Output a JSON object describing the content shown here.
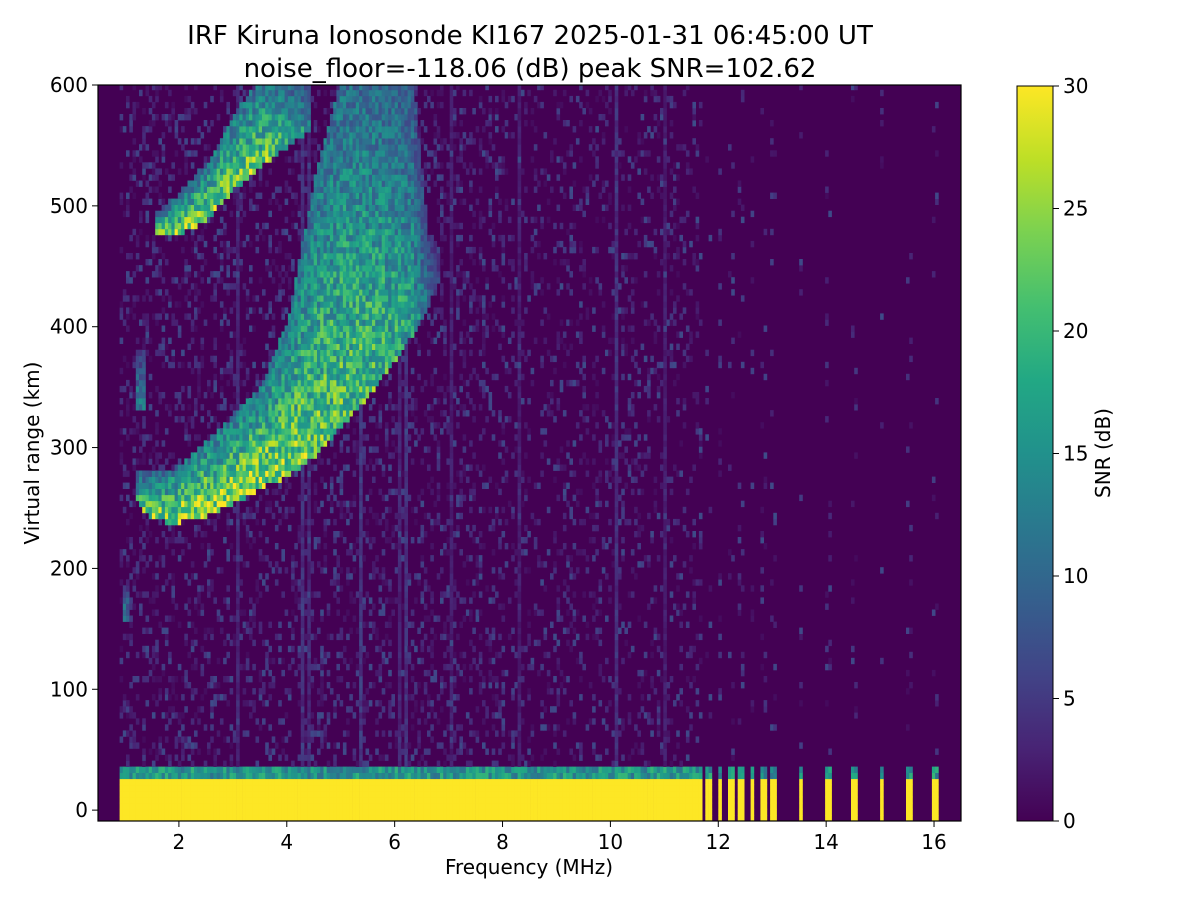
{
  "chart_data": {
    "type": "heatmap",
    "title": "IRF Kiruna Ionosonde KI167 2025-01-31 06:45:00  UT",
    "subtitle": "noise_floor=-118.06 (dB) peak SNR=102.62",
    "xlabel": "Frequency (MHz)",
    "ylabel": "Virtual range (km)",
    "xlim": [
      0.5,
      16.5
    ],
    "ylim": [
      -9,
      600
    ],
    "xticks": [
      "2",
      "4",
      "6",
      "8",
      "10",
      "12",
      "14",
      "16"
    ],
    "xtick_values": [
      2,
      4,
      6,
      8,
      10,
      12,
      14,
      16
    ],
    "yticks": [
      "0",
      "100",
      "200",
      "300",
      "400",
      "500",
      "600"
    ],
    "ytick_values": [
      0,
      100,
      200,
      300,
      400,
      500,
      600
    ],
    "colorbar": {
      "label": "SNR (dB)",
      "range": [
        0,
        30
      ],
      "ticks": [
        "0",
        "5",
        "10",
        "15",
        "20",
        "25",
        "30"
      ],
      "tick_values": [
        0,
        5,
        10,
        15,
        20,
        25,
        30
      ],
      "colormap": "viridis"
    },
    "sweep_start_mhz": 0.9,
    "echo_traces": [
      {
        "name": "F-layer trace (1-hop)",
        "points_freq_hlow_hhigh_snr": [
          [
            1.15,
            258,
            278,
            20
          ],
          [
            1.4,
            244,
            272,
            26
          ],
          [
            1.7,
            240,
            272,
            28
          ],
          [
            2.0,
            240,
            280,
            30
          ],
          [
            2.5,
            245,
            300,
            30
          ],
          [
            3.0,
            255,
            322,
            30
          ],
          [
            3.5,
            268,
            345,
            30
          ],
          [
            4.0,
            278,
            400,
            28
          ],
          [
            4.5,
            295,
            520,
            26
          ],
          [
            5.0,
            320,
            600,
            25
          ],
          [
            5.5,
            345,
            600,
            24
          ],
          [
            6.0,
            375,
            600,
            22
          ],
          [
            6.3,
            395,
            600,
            19
          ],
          [
            6.6,
            420,
            470,
            12
          ],
          [
            6.8,
            440,
            460,
            6
          ]
        ]
      },
      {
        "name": "F-layer trace (2-hop)",
        "points_freq_hlow_hhigh_snr": [
          [
            1.55,
            476,
            488,
            24
          ],
          [
            2.0,
            478,
            505,
            28
          ],
          [
            2.5,
            490,
            530,
            28
          ],
          [
            3.0,
            515,
            570,
            28
          ],
          [
            3.5,
            535,
            600,
            26
          ],
          [
            4.0,
            550,
            600,
            22
          ],
          [
            4.4,
            565,
            600,
            16
          ]
        ]
      },
      {
        "name": "weak echo",
        "points_freq_hlow_hhigh_snr": [
          [
            1.2,
            335,
            372,
            14
          ],
          [
            1.35,
            335,
            372,
            12
          ]
        ]
      },
      {
        "name": "weak echo low",
        "points_freq_hlow_hhigh_snr": [
          [
            0.95,
            160,
            180,
            14
          ],
          [
            1.05,
            160,
            180,
            12
          ]
        ]
      }
    ],
    "ground_clutter": {
      "freq_start": 0.9,
      "freq_end": 11.7,
      "strong_top_km": 22,
      "snr_strong": 30,
      "mid_top_km": 36,
      "snr_mid": 18
    },
    "discrete_channels_mhz": [
      11.8,
      12.0,
      12.2,
      12.4,
      12.6,
      12.8,
      13.0,
      13.5,
      14.0,
      14.5,
      15.0,
      15.5,
      16.0
    ],
    "interference_streaks_mhz": [
      [
        3.05,
        4
      ],
      [
        4.25,
        5
      ],
      [
        4.4,
        4
      ],
      [
        5.35,
        6
      ],
      [
        6.05,
        4
      ],
      [
        6.2,
        5
      ],
      [
        7.0,
        3
      ],
      [
        8.3,
        3
      ],
      [
        10.1,
        5
      ],
      [
        11.0,
        3
      ]
    ]
  }
}
